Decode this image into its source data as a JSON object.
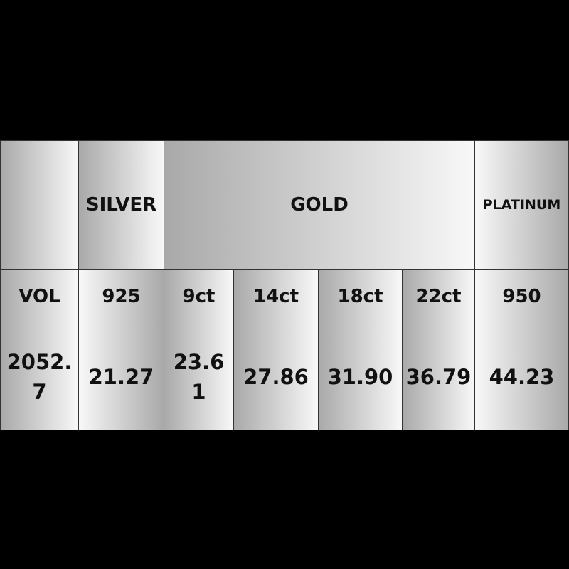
{
  "table": {
    "groups": [
      {
        "label": ""
      },
      {
        "label": "SILVER"
      },
      {
        "label": "GOLD"
      },
      {
        "label": "PLATINUM"
      }
    ],
    "columns": [
      "VOL",
      "925",
      "9ct",
      "14ct",
      "18ct",
      "22ct",
      "950"
    ],
    "values": [
      "2052.7",
      "21.27",
      "23.61",
      "27.86",
      "31.90",
      "36.79",
      "44.23"
    ]
  }
}
